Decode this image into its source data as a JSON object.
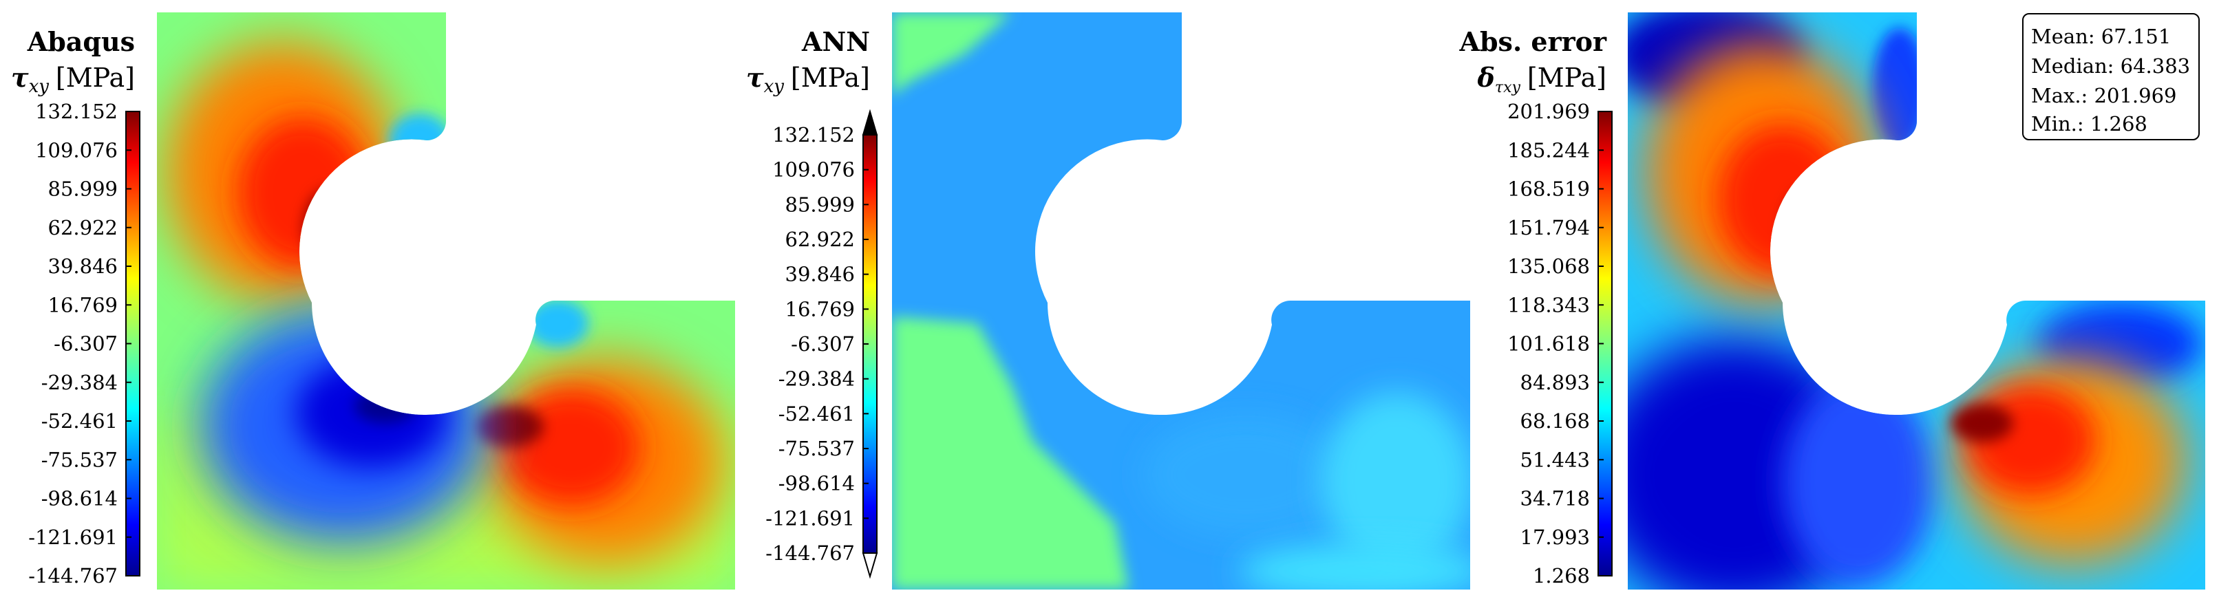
{
  "panels": [
    {
      "title": "Abaqus",
      "quantity": "τxy",
      "quantity_base": "τ",
      "quantity_sub": "xy",
      "unit": "[MPa]",
      "colorbar_ticks": [
        "132.152",
        "109.076",
        "85.999",
        "62.922",
        "39.846",
        "16.769",
        "-6.307",
        "-29.384",
        "-52.461",
        "-75.537",
        "-98.614",
        "-121.691",
        "-144.767"
      ],
      "field": "stress"
    },
    {
      "title": "ANN",
      "quantity": "τxy",
      "quantity_base": "τ",
      "quantity_sub": "xy",
      "unit": "[MPa]",
      "colorbar_ticks": [
        "132.152",
        "109.076",
        "85.999",
        "62.922",
        "39.846",
        "16.769",
        "-6.307",
        "-29.384",
        "-52.461",
        "-75.537",
        "-98.614",
        "-121.691",
        "-144.767"
      ],
      "colorbar_extend": "both",
      "field": "uniform"
    },
    {
      "title": "Abs. error",
      "quantity": "δτxy",
      "quantity_base": "δ",
      "quantity_sub": "τxy",
      "unit": "[MPa]",
      "colorbar_ticks": [
        "201.969",
        "185.244",
        "168.519",
        "151.794",
        "135.068",
        "118.343",
        "101.618",
        "84.893",
        "68.168",
        "51.443",
        "34.718",
        "17.993",
        "1.268"
      ],
      "field": "error"
    }
  ],
  "stats_box": {
    "mean": "Mean: 67.151",
    "median": "Median: 64.383",
    "max": "Max.: 201.969",
    "min": "Min.: 1.268"
  },
  "colormap": "jet",
  "colors": {
    "green": "#6fff8c",
    "blue": "#29a0ff",
    "dark_red": "#7f0000",
    "dark_blue": "#00008f"
  }
}
